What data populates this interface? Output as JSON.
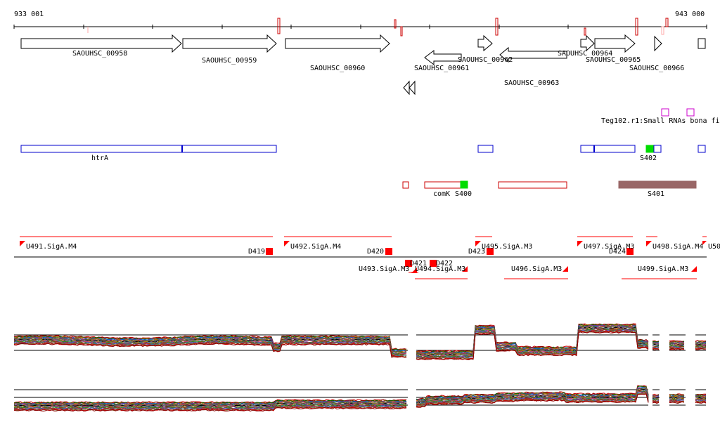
{
  "coordinates": {
    "start": "933 001",
    "end": "943 000"
  },
  "genes": [
    {
      "label": "SAOUHSC_00958"
    },
    {
      "label": "SAOUHSC_00959"
    },
    {
      "label": "SAOUHSC_00960"
    },
    {
      "label": "SAOUHSC_00961"
    },
    {
      "label": "SAOUHSC_00962"
    },
    {
      "label": "SAOUHSC_00963"
    },
    {
      "label": "SAOUHSC_00964"
    },
    {
      "label": "SAOUHSC_00965"
    },
    {
      "label": "SAOUHSC_00966"
    }
  ],
  "small_rna": {
    "label": "Teg102.r1:Small RNAs bona fi"
  },
  "annotations": [
    {
      "label": "htrA"
    },
    {
      "label": "S402"
    },
    {
      "label": "comK"
    },
    {
      "label": "S400"
    },
    {
      "label": "S401"
    }
  ],
  "promoters_upper": [
    {
      "label": "U491.SigA.M4"
    },
    {
      "label": "U492.SigA.M4"
    },
    {
      "label": "U495.SigA.M3"
    },
    {
      "label": "U497.SigA.M3"
    },
    {
      "label": "U498.SigA.M4"
    },
    {
      "label": "U50"
    }
  ],
  "promoters_lower": [
    {
      "label": "U493.SigA.M3"
    },
    {
      "label": "U494.SigA.M3"
    },
    {
      "label": "U496.SigA.M3"
    },
    {
      "label": "U499.SigA.M3"
    }
  ],
  "terminators": [
    {
      "label": "D419"
    },
    {
      "label": "D420"
    },
    {
      "label": "D421"
    },
    {
      "label": "D422"
    },
    {
      "label": "D423"
    },
    {
      "label": "D424"
    }
  ],
  "colors": {
    "gene_outline": "#000000",
    "annotation_outline": "#0000cc",
    "operon_outline": "#cc0000",
    "promoter": "#ff0000",
    "small_rna": "#cc00cc",
    "highlight_green": "#00dd00",
    "s401_fill": "#996666"
  }
}
